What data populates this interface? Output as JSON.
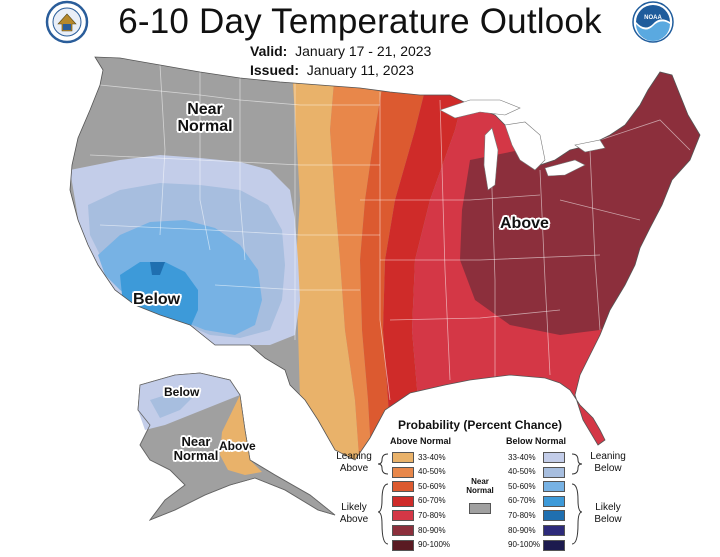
{
  "header": {
    "title": "6-10 Day Temperature Outlook",
    "valid_label": "Valid:",
    "valid_value": "January 17 - 21, 2023",
    "issued_label": "Issued:",
    "issued_value": "January 11, 2023",
    "logo_left": "department-of-commerce-seal",
    "logo_right": "noaa-logo"
  },
  "map_labels": {
    "near_normal_conus_1": "Near",
    "near_normal_conus_2": "Normal",
    "above_conus": "Above",
    "below_conus": "Below",
    "below_alaska": "Below",
    "near_normal_alaska_1": "Near",
    "near_normal_alaska_2": "Normal",
    "above_alaska": "Above"
  },
  "legend": {
    "title": "Probability (Percent Chance)",
    "above_header": "Above Normal",
    "below_header": "Below Normal",
    "leaning_above_1": "Leaning",
    "leaning_above_2": "Above",
    "likely_above_1": "Likely",
    "likely_above_2": "Above",
    "leaning_below_1": "Leaning",
    "leaning_below_2": "Below",
    "likely_below_1": "Likely",
    "likely_below_2": "Below",
    "near_normal_1": "Near",
    "near_normal_2": "Normal",
    "near_normal_color": "#a0a0a0",
    "above": [
      {
        "range": "33-40%",
        "color": "#e9b26a"
      },
      {
        "range": "40-50%",
        "color": "#e8874a"
      },
      {
        "range": "50-60%",
        "color": "#dc5a30"
      },
      {
        "range": "60-70%",
        "color": "#cf2b29"
      },
      {
        "range": "70-80%",
        "color": "#d43746"
      },
      {
        "range": "80-90%",
        "color": "#8c2f3c"
      },
      {
        "range": "90-100%",
        "color": "#5a1a22"
      }
    ],
    "below": [
      {
        "range": "33-40%",
        "color": "#c3cde9"
      },
      {
        "range": "40-50%",
        "color": "#a7bedf"
      },
      {
        "range": "50-60%",
        "color": "#77b2e4"
      },
      {
        "range": "60-70%",
        "color": "#3d9ad9"
      },
      {
        "range": "70-80%",
        "color": "#1f6fb0"
      },
      {
        "range": "80-90%",
        "color": "#2d2a7a"
      },
      {
        "range": "90-100%",
        "color": "#1c1a4e"
      }
    ]
  }
}
